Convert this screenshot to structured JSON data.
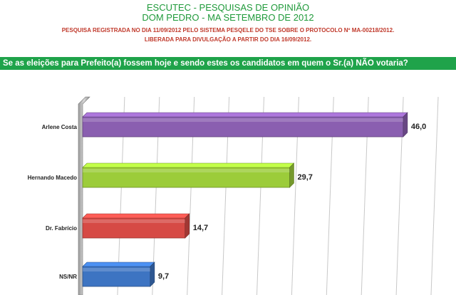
{
  "header": {
    "title1": "ESCUTEC - PESQUISAS DE OPINIÃO",
    "title2": "DOM PEDRO - MA SETEMBRO DE 2012",
    "note1": "PESQUISA REGISTRADA NO DIA 11/09/2012 PELO SISTEMA PESQELE DO TSE SOBRE O PROTOCOLO Nº MA-00218/2012.",
    "note2": "LIBERADA PARA DIVULGAÇÃO A PARTIR DO DIA 16/09/2012.",
    "question": "Se as eleições para Prefeito(a) fossem hoje e sendo estes os candidatos em quem o Sr.(a) NÃO votaria?"
  },
  "colors": {
    "title": "#1f9a3a",
    "note": "#c0392b",
    "question_bg": "#1fa34a"
  },
  "chart_data": {
    "type": "bar",
    "orientation": "horizontal",
    "categories": [
      "Arlene Costa",
      "Hernando Macedo",
      "Dr. Fabrício",
      "NS/NR"
    ],
    "values": [
      46.0,
      29.7,
      14.7,
      9.7
    ],
    "value_labels": [
      "46,0",
      "29,7",
      "14,7",
      "9,7"
    ],
    "colors": [
      "#8a5fb0",
      "#9ccc3a",
      "#d64a45",
      "#3d74c2"
    ],
    "xlim": [
      0,
      50
    ],
    "grid": true
  }
}
